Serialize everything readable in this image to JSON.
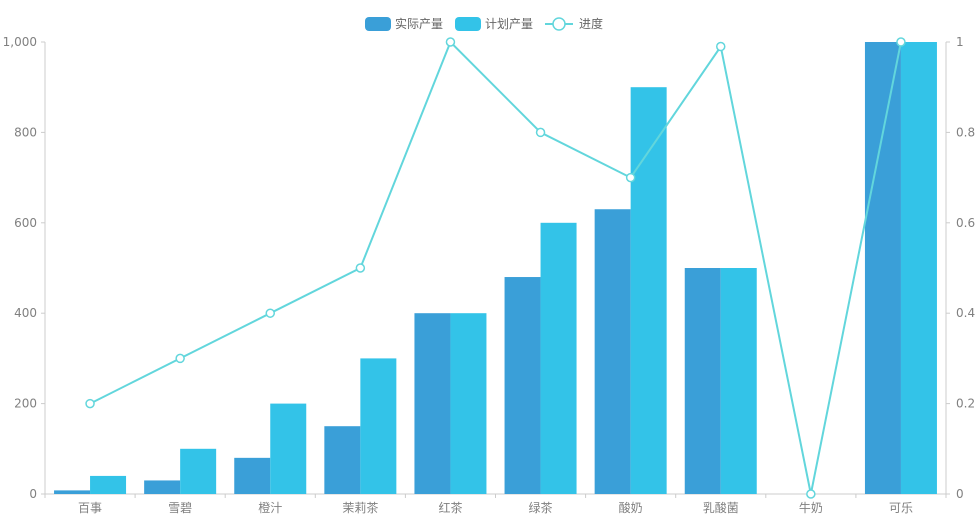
{
  "chart_data": {
    "type": "bar",
    "categories": [
      "百事",
      "雪碧",
      "橙汁",
      "茉莉茶",
      "红茶",
      "绿茶",
      "酸奶",
      "乳酸菌",
      "牛奶",
      "可乐"
    ],
    "series": [
      {
        "name": "实际产量",
        "type": "bar",
        "axis": "left",
        "color": "#3a9fd8",
        "values": [
          8,
          30,
          80,
          150,
          400,
          480,
          630,
          500,
          0,
          1000
        ]
      },
      {
        "name": "计划产量",
        "type": "bar",
        "axis": "left",
        "color": "#33c3e8",
        "values": [
          40,
          100,
          200,
          300,
          400,
          600,
          900,
          500,
          0,
          1000
        ]
      },
      {
        "name": "进度",
        "type": "line",
        "axis": "right",
        "color": "#62d6dc",
        "values": [
          0.2,
          0.3,
          0.4,
          0.5,
          1.0,
          0.8,
          0.7,
          0.99,
          0,
          1.0
        ]
      }
    ],
    "left_axis": {
      "ylim": [
        0,
        1000
      ],
      "ticks": [
        "0",
        "200",
        "400",
        "600",
        "800",
        "1,000"
      ]
    },
    "right_axis": {
      "ylim": [
        0,
        1
      ],
      "ticks": [
        "0",
        "0.2",
        "0.4",
        "0.6",
        "0.8",
        "1"
      ]
    },
    "legend": {
      "position": "top-center"
    },
    "grid": false
  }
}
